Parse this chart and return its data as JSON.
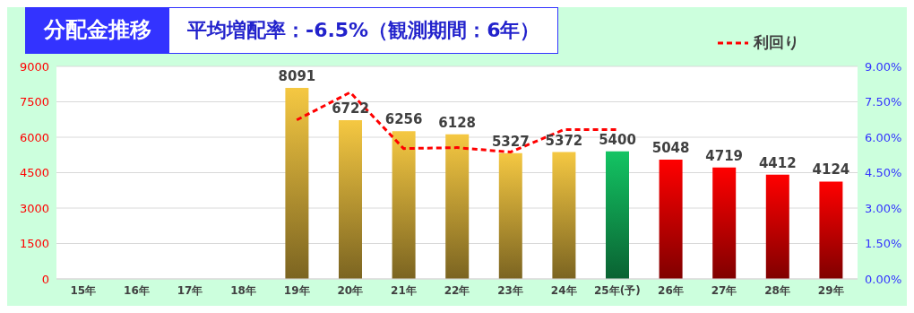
{
  "chart_data": {
    "type": "bar",
    "title": "分配金推移",
    "subtitle": "平均増配率：-6.5%（観測期間：6年）",
    "categories": [
      "15年",
      "16年",
      "17年",
      "18年",
      "19年",
      "20年",
      "21年",
      "22年",
      "23年",
      "24年",
      "25年(予)",
      "26年",
      "27年",
      "28年",
      "29年"
    ],
    "series": [
      {
        "colors": [
          "#f5c842",
          "#f5c842",
          "#f5c842",
          "#f5c842",
          "#f5c842",
          "#f5c842",
          "#f5c842",
          "#f5c842",
          "#f5c842",
          "#f5c842",
          "#13c463",
          "#ff0000",
          "#ff0000",
          "#ff0000",
          "#ff0000"
        ],
        "values": [
          null,
          null,
          null,
          null,
          8091,
          6722,
          6256,
          6128,
          5327,
          5372,
          5400,
          5048,
          4719,
          4412,
          4124
        ],
        "value_labels": [
          null,
          null,
          null,
          null,
          "8091",
          "6722",
          "6256",
          "6128",
          "5327",
          "5372",
          "5400",
          "5048",
          "4719",
          "4412",
          "4124"
        ]
      },
      {
        "type": "line",
        "name": "利回り",
        "color": "#ff0000",
        "axis": "y2",
        "line_style": "dashed",
        "values": [
          null,
          null,
          null,
          null,
          6.73,
          7.9,
          5.52,
          5.56,
          5.37,
          6.32,
          6.32,
          null,
          null,
          null,
          null
        ]
      }
    ],
    "ylim": [
      0,
      9000
    ],
    "yticks": [
      0,
      1500,
      3000,
      4500,
      6000,
      7500,
      9000
    ],
    "y2lim": [
      0,
      9
    ],
    "y2ticks": [
      {
        "value": 0,
        "label": "0.00%"
      },
      {
        "value": 1.5,
        "label": "1.50%"
      },
      {
        "value": 3,
        "label": "3.00%"
      },
      {
        "value": 4.5,
        "label": "4.50%"
      },
      {
        "value": 6,
        "label": "6.00%"
      },
      {
        "value": 7.5,
        "label": "7.50%"
      },
      {
        "value": 9,
        "label": "9.00%"
      }
    ],
    "grid": "y",
    "legend": "top right",
    "marker": "none"
  }
}
